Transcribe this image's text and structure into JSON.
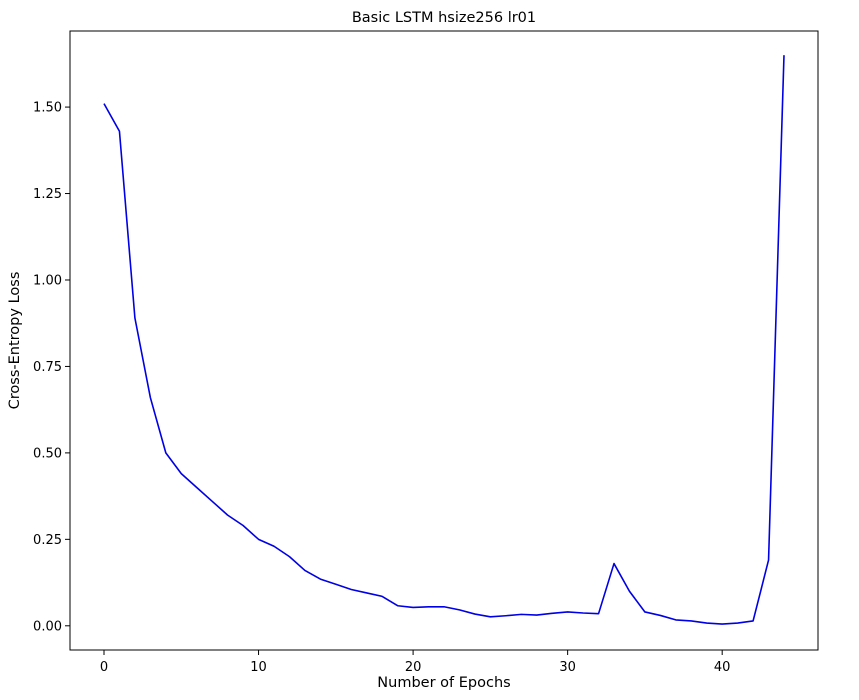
{
  "chart_data": {
    "type": "line",
    "title": "Basic LSTM hsize256 lr01",
    "xlabel": "Number of Epochs",
    "ylabel": "Cross-Entropy Loss",
    "xlim": [
      -2.2,
      46.2
    ],
    "ylim": [
      -0.07,
      1.72
    ],
    "xticks": [
      0,
      10,
      20,
      30,
      40
    ],
    "xtick_labels": [
      "0",
      "10",
      "20",
      "30",
      "40"
    ],
    "yticks": [
      0.0,
      0.25,
      0.5,
      0.75,
      1.0,
      1.25,
      1.5
    ],
    "ytick_labels": [
      "0.00",
      "0.25",
      "0.50",
      "0.75",
      "1.00",
      "1.25",
      "1.50"
    ],
    "grid": false,
    "line_color": "#0000e6",
    "series": [
      {
        "x": [
          0,
          1,
          2,
          3,
          4,
          5,
          6,
          7,
          8,
          9,
          10,
          11,
          12,
          13,
          14,
          15,
          16,
          17,
          18,
          19,
          20,
          21,
          22,
          23,
          24,
          25,
          26,
          27,
          28,
          29,
          30,
          31,
          32,
          33,
          34,
          35,
          36,
          37,
          38,
          39,
          40,
          41,
          42,
          43,
          44
        ],
        "values": [
          1.51,
          1.43,
          0.89,
          0.66,
          0.5,
          0.44,
          0.4,
          0.36,
          0.32,
          0.29,
          0.25,
          0.23,
          0.2,
          0.16,
          0.135,
          0.12,
          0.105,
          0.095,
          0.085,
          0.058,
          0.053,
          0.055,
          0.055,
          0.046,
          0.034,
          0.026,
          0.029,
          0.033,
          0.031,
          0.036,
          0.04,
          0.037,
          0.035,
          0.18,
          0.1,
          0.04,
          0.03,
          0.017,
          0.014,
          0.008,
          0.005,
          0.008,
          0.014,
          0.19,
          1.65
        ]
      }
    ]
  }
}
